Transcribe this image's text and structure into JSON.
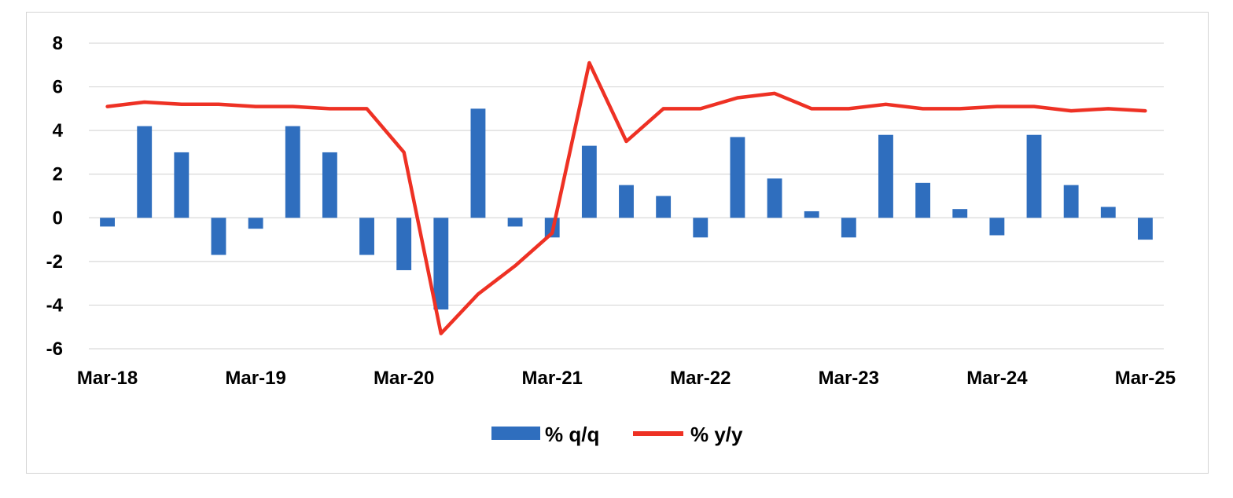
{
  "chart_data": {
    "type": "bar",
    "title": "",
    "xlabel": "",
    "ylabel": "",
    "ylim": [
      -6,
      8
    ],
    "yticks": [
      "8",
      "6",
      "4",
      "2",
      "0",
      "-2",
      "-4",
      "-6"
    ],
    "ytick_values": [
      8,
      6,
      4,
      2,
      0,
      -2,
      -4,
      -6
    ],
    "x_tick_labels": [
      "Mar-18",
      "Mar-19",
      "Mar-20",
      "Mar-21",
      "Mar-22",
      "Mar-23",
      "Mar-24",
      "Mar-25"
    ],
    "grid": true,
    "legend_position": "bottom",
    "categories": [
      "Mar-18",
      "Jun-18",
      "Sep-18",
      "Dec-18",
      "Mar-19",
      "Jun-19",
      "Sep-19",
      "Dec-19",
      "Mar-20",
      "Jun-20",
      "Sep-20",
      "Dec-20",
      "Mar-21",
      "Jun-21",
      "Sep-21",
      "Dec-21",
      "Mar-22",
      "Jun-22",
      "Sep-22",
      "Dec-22",
      "Mar-23",
      "Jun-23",
      "Sep-23",
      "Dec-23",
      "Mar-24",
      "Jun-24",
      "Sep-24",
      "Dec-24",
      "Mar-25"
    ],
    "series": [
      {
        "name": "% q/q",
        "type": "bar",
        "color": "#2f6ebe",
        "values": [
          -0.4,
          4.2,
          3.0,
          -1.7,
          -0.5,
          4.2,
          3.0,
          -1.7,
          -2.4,
          -4.2,
          5.0,
          -0.4,
          -0.9,
          3.3,
          1.5,
          1.0,
          -0.9,
          3.7,
          1.8,
          0.3,
          -0.9,
          3.8,
          1.6,
          0.4,
          -0.8,
          3.8,
          1.5,
          0.5,
          -1.0
        ]
      },
      {
        "name": "% y/y",
        "type": "line",
        "color": "#ee3124",
        "values": [
          5.1,
          5.3,
          5.2,
          5.2,
          5.1,
          5.1,
          5.0,
          5.0,
          3.0,
          -5.3,
          -3.5,
          -2.2,
          -0.7,
          7.1,
          3.5,
          5.0,
          5.0,
          5.5,
          5.7,
          5.0,
          5.0,
          5.2,
          5.0,
          5.0,
          5.1,
          5.1,
          4.9,
          5.0,
          4.9
        ]
      }
    ]
  }
}
